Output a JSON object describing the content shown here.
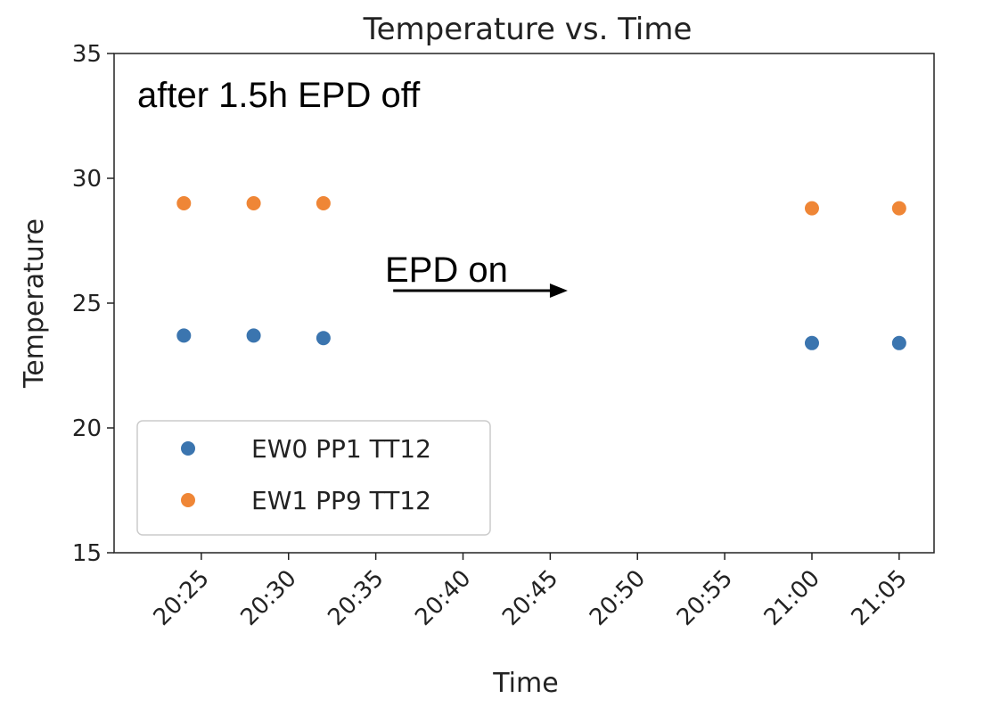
{
  "chart_data": {
    "type": "scatter",
    "title": "Temperature vs. Time",
    "xlabel": "Time",
    "ylabel": "Temperature",
    "ylim": [
      15,
      35
    ],
    "yticks": [
      15,
      20,
      25,
      30,
      35
    ],
    "xlim": [
      "20:20",
      "21:07"
    ],
    "xticks": [
      "20:25",
      "20:30",
      "20:35",
      "20:40",
      "20:45",
      "20:50",
      "20:55",
      "21:00",
      "21:05"
    ],
    "grid": false,
    "legend_position": "lower-left",
    "series": [
      {
        "name": "EW0 PP1 TT12",
        "color": "#3b75af",
        "points": [
          {
            "x": "20:24",
            "y": 23.7
          },
          {
            "x": "20:28",
            "y": 23.7
          },
          {
            "x": "20:32",
            "y": 23.6
          },
          {
            "x": "21:00",
            "y": 23.4
          },
          {
            "x": "21:05",
            "y": 23.4
          }
        ]
      },
      {
        "name": "EW1 PP9 TT12",
        "color": "#ef8636",
        "points": [
          {
            "x": "20:24",
            "y": 29.0
          },
          {
            "x": "20:28",
            "y": 29.0
          },
          {
            "x": "20:32",
            "y": 29.0
          },
          {
            "x": "21:00",
            "y": 28.8
          },
          {
            "x": "21:05",
            "y": 28.8
          }
        ]
      }
    ],
    "annotations": [
      {
        "text": "after 1.5h EPD off",
        "position": "top-left"
      },
      {
        "text": "EPD on",
        "arrow": true,
        "arrow_from": "20:36",
        "arrow_to": "20:46",
        "y": 25.5
      }
    ]
  }
}
